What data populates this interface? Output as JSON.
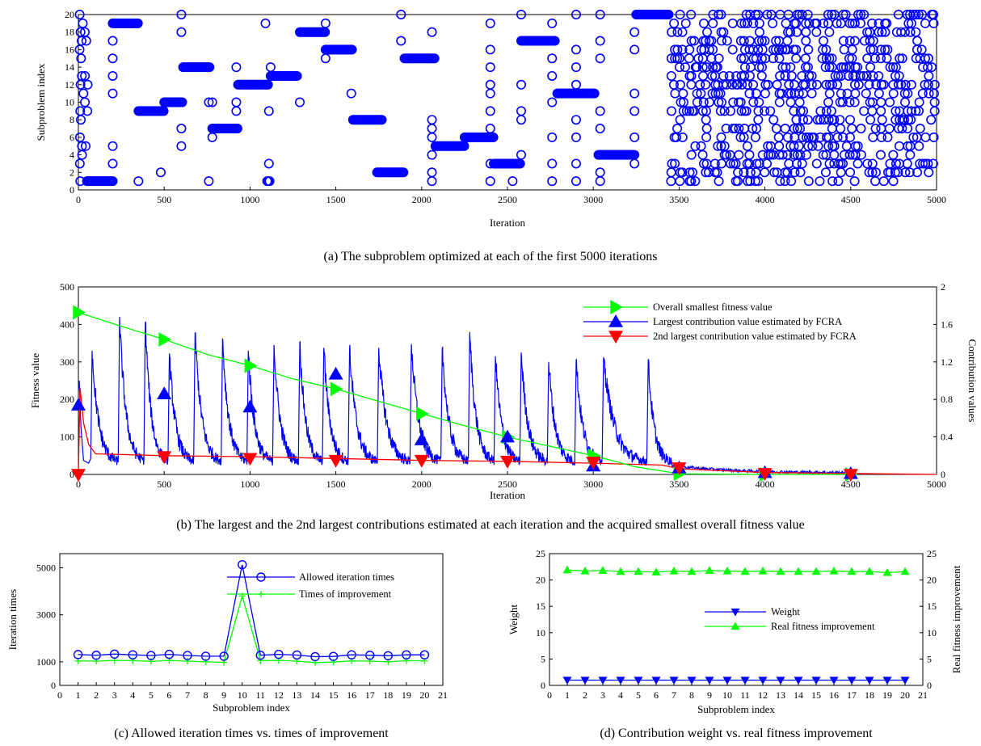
{
  "panels": {
    "a": {
      "caption": "(a)  The subproblem optimized at each of the first 5000 iterations",
      "xlabel": "Iteration",
      "ylabel": "Subproblem index",
      "x_ticks": [
        "0",
        "500",
        "1000",
        "1500",
        "2000",
        "2500",
        "3000",
        "3500",
        "4000",
        "4500",
        "5000"
      ],
      "y_ticks": [
        "0",
        "2",
        "4",
        "6",
        "8",
        "10",
        "12",
        "14",
        "16",
        "18",
        "20"
      ]
    },
    "b": {
      "caption": "(b)  The largest and the 2nd largest contributions estimated at each iteration and the acquired smallest overall fitness value",
      "xlabel": "Iteration",
      "ylabel": "Fitness value",
      "y2label": "Contribution values",
      "x_ticks": [
        "0",
        "500",
        "1000",
        "1500",
        "2000",
        "2500",
        "3000",
        "3500",
        "4000",
        "4500",
        "5000"
      ],
      "y_ticks": [
        "0",
        "100",
        "200",
        "300",
        "400",
        "500"
      ],
      "y2_ticks": [
        "0",
        "0.4",
        "0.8",
        "1.2",
        "1.6",
        "2"
      ],
      "legend": [
        "Overall smallest fitness value",
        "Largest contribution value estimated by FCRA",
        "2nd largest contribution value estimated by FCRA"
      ]
    },
    "c": {
      "caption": "(c)  Allowed iteration times vs. times of improvement",
      "xlabel": "Subproblem index",
      "ylabel": "Iteration times",
      "x_ticks": [
        "0",
        "1",
        "2",
        "3",
        "4",
        "5",
        "6",
        "7",
        "8",
        "9",
        "10",
        "11",
        "12",
        "13",
        "14",
        "15",
        "16",
        "17",
        "18",
        "19",
        "20",
        "21"
      ],
      "y_ticks": [
        "0",
        "1000",
        "3000",
        "5000"
      ],
      "legend": [
        "Allowed iteration times",
        "Times of improvement"
      ]
    },
    "d": {
      "caption": "(d)  Contribution weight vs. real fitness improvement",
      "xlabel": "Subproblem index",
      "ylabel": "Weight",
      "y2label": "Real fitness improvement",
      "x_ticks": [
        "0",
        "1",
        "2",
        "3",
        "4",
        "5",
        "6",
        "7",
        "8",
        "9",
        "10",
        "11",
        "12",
        "13",
        "14",
        "15",
        "16",
        "17",
        "18",
        "19",
        "20",
        "21"
      ],
      "y_ticks": [
        "0",
        "5",
        "10",
        "15",
        "20",
        "25"
      ],
      "y2_ticks": [
        "0",
        "5",
        "10",
        "15",
        "20",
        "25"
      ],
      "y2_tick_labels_overlay": [
        "10"
      ],
      "legend": [
        "Weight",
        "Real fitness improvement"
      ]
    }
  },
  "colors": {
    "blue": "#0000ff",
    "green": "#00ff00",
    "red": "#ff0000"
  },
  "chart_data": [
    {
      "type": "scatter",
      "panel": "a",
      "xlim": [
        0,
        5000
      ],
      "ylim": [
        0,
        20
      ],
      "marker": "open-circle",
      "series": [
        {
          "runs": [
            {
              "x0": 50,
              "x1": 200,
              "y": 1
            },
            {
              "x0": 200,
              "x1": 350,
              "y": 19
            },
            {
              "x0": 350,
              "x1": 500,
              "y": 9
            },
            {
              "x0": 500,
              "x1": 610,
              "y": 10
            },
            {
              "x0": 610,
              "x1": 770,
              "y": 14
            },
            {
              "x0": 780,
              "x1": 930,
              "y": 7
            },
            {
              "x0": 930,
              "x1": 1110,
              "y": 12
            },
            {
              "x0": 1100,
              "x1": 1120,
              "y": 1
            },
            {
              "x0": 1120,
              "x1": 1280,
              "y": 13
            },
            {
              "x0": 1290,
              "x1": 1440,
              "y": 18
            },
            {
              "x0": 1440,
              "x1": 1600,
              "y": 16
            },
            {
              "x0": 1600,
              "x1": 1770,
              "y": 8
            },
            {
              "x0": 1740,
              "x1": 1900,
              "y": 2
            },
            {
              "x0": 1900,
              "x1": 2080,
              "y": 15
            },
            {
              "x0": 2080,
              "x1": 2250,
              "y": 5
            },
            {
              "x0": 2250,
              "x1": 2420,
              "y": 6
            },
            {
              "x0": 2420,
              "x1": 2580,
              "y": 3
            },
            {
              "x0": 2580,
              "x1": 2780,
              "y": 17
            },
            {
              "x0": 2790,
              "x1": 3010,
              "y": 11
            },
            {
              "x0": 3030,
              "x1": 3240,
              "y": 4
            },
            {
              "x0": 3250,
              "x1": 3440,
              "y": 20
            }
          ],
          "scatter_regions": [
            {
              "x0": 0,
              "x1": 60,
              "density": 0.7
            },
            {
              "x0": 3440,
              "x1": 5000,
              "density": 1.0
            }
          ],
          "isolated": [
            [
              200,
              1
            ],
            [
              200,
              3
            ],
            [
              200,
              5
            ],
            [
              200,
              11
            ],
            [
              200,
              13
            ],
            [
              200,
              15
            ],
            [
              200,
              17
            ],
            [
              350,
              1
            ],
            [
              480,
              2
            ],
            [
              600,
              5
            ],
            [
              600,
              7
            ],
            [
              600,
              18
            ],
            [
              600,
              20
            ],
            [
              760,
              1
            ],
            [
              760,
              10
            ],
            [
              780,
              6
            ],
            [
              780,
              10
            ],
            [
              920,
              14
            ],
            [
              920,
              10
            ],
            [
              920,
              9
            ],
            [
              1090,
              19
            ],
            [
              1110,
              3
            ],
            [
              1110,
              9
            ],
            [
              1120,
              14
            ],
            [
              1290,
              10
            ],
            [
              1440,
              15
            ],
            [
              1440,
              19
            ],
            [
              1590,
              11
            ],
            [
              1880,
              17
            ],
            [
              1880,
              20
            ],
            [
              2060,
              1
            ],
            [
              2060,
              2
            ],
            [
              2060,
              4
            ],
            [
              2060,
              6
            ],
            [
              2060,
              7
            ],
            [
              2060,
              8
            ],
            [
              2060,
              18
            ],
            [
              2400,
              1
            ],
            [
              2400,
              3
            ],
            [
              2400,
              7
            ],
            [
              2400,
              9
            ],
            [
              2400,
              11
            ],
            [
              2400,
              12
            ],
            [
              2400,
              14
            ],
            [
              2400,
              16
            ],
            [
              2400,
              19
            ],
            [
              2530,
              1
            ],
            [
              2580,
              4
            ],
            [
              2580,
              8
            ],
            [
              2580,
              9
            ],
            [
              2580,
              12
            ],
            [
              2580,
              20
            ],
            [
              2760,
              1
            ],
            [
              2760,
              3
            ],
            [
              2760,
              6
            ],
            [
              2760,
              10
            ],
            [
              2760,
              13
            ],
            [
              2760,
              15
            ],
            [
              2760,
              19
            ],
            [
              2900,
              1
            ],
            [
              2900,
              3
            ],
            [
              2900,
              6
            ],
            [
              2900,
              8
            ],
            [
              2900,
              12
            ],
            [
              2900,
              14
            ],
            [
              2900,
              16
            ],
            [
              2900,
              20
            ],
            [
              3040,
              1
            ],
            [
              3040,
              2
            ],
            [
              3040,
              7
            ],
            [
              3040,
              9
            ],
            [
              3040,
              15
            ],
            [
              3040,
              17
            ],
            [
              3040,
              20
            ],
            [
              3240,
              3
            ],
            [
              3240,
              6
            ],
            [
              3240,
              9
            ],
            [
              3240,
              11
            ],
            [
              3240,
              16
            ],
            [
              3240,
              18
            ]
          ]
        }
      ]
    },
    {
      "type": "line",
      "panel": "b",
      "xlim": [
        0,
        5000
      ],
      "ylim": [
        0,
        500
      ],
      "y2lim": [
        0,
        2
      ],
      "series": [
        {
          "name": "Overall smallest fitness value",
          "axis": "left",
          "color": "#00ff00",
          "marker": "triangle-right",
          "x": [
            0,
            250,
            500,
            750,
            1000,
            1250,
            1500,
            1750,
            2000,
            2250,
            2500,
            2750,
            3000,
            3250,
            3500,
            4000,
            4500
          ],
          "y": [
            432,
            395,
            360,
            320,
            290,
            255,
            228,
            195,
            162,
            130,
            100,
            75,
            50,
            20,
            2,
            0,
            0
          ],
          "markers_at": [
            0,
            500,
            1000,
            1500,
            2000,
            2500,
            3000,
            3500,
            4000,
            4500
          ]
        },
        {
          "name": "Largest contribution value estimated by FCRA",
          "axis": "right",
          "color": "#0000ff",
          "marker": "triangle-up",
          "peaks_x": [
            80,
            240,
            390,
            530,
            680,
            840,
            990,
            1140,
            1290,
            1430,
            1580,
            1750,
            1940,
            2120,
            2280,
            2430,
            2580,
            2740,
            2900,
            3060,
            3320
          ],
          "peaks_y": [
            1.32,
            1.68,
            1.62,
            1.29,
            1.51,
            1.45,
            1.32,
            1.38,
            1.41,
            1.35,
            1.34,
            1.35,
            1.39,
            1.35,
            1.52,
            1.26,
            1.3,
            1.2,
            1.22,
            1.25,
            1.22
          ],
          "baseline_y": 0.12,
          "after_3450_y": 0.02,
          "markers_at": [
            [
              0,
              0.74
            ],
            [
              500,
              0.86
            ],
            [
              1000,
              0.72
            ],
            [
              1500,
              1.07
            ],
            [
              2000,
              0.37
            ],
            [
              2500,
              0.4
            ],
            [
              3000,
              0.09
            ],
            [
              3500,
              0.07
            ],
            [
              4000,
              0.02
            ],
            [
              4500,
              0.01
            ]
          ]
        },
        {
          "name": "2nd largest contribution value estimated by FCRA",
          "axis": "right",
          "color": "#ff0000",
          "marker": "triangle-down",
          "x": [
            0,
            10,
            30,
            60,
            100,
            500,
            1000,
            1500,
            2000,
            2500,
            3000,
            3400,
            3500,
            4000,
            4500,
            5000
          ],
          "y": [
            0.0,
            0.92,
            0.55,
            0.32,
            0.22,
            0.2,
            0.19,
            0.17,
            0.15,
            0.14,
            0.12,
            0.1,
            0.06,
            0.02,
            0.01,
            0.0
          ],
          "markers_at": [
            [
              0,
              0.0
            ],
            [
              500,
              0.19
            ],
            [
              1000,
              0.17
            ],
            [
              1500,
              0.15
            ],
            [
              2000,
              0.15
            ],
            [
              2500,
              0.14
            ],
            [
              3000,
              0.13
            ],
            [
              3500,
              0.07
            ],
            [
              4000,
              0.01
            ],
            [
              4500,
              0.0
            ]
          ]
        }
      ]
    },
    {
      "type": "line",
      "panel": "c",
      "xlim": [
        0,
        21
      ],
      "ylim": [
        0,
        5600
      ],
      "categories": [
        1,
        2,
        3,
        4,
        5,
        6,
        7,
        8,
        9,
        10,
        11,
        12,
        13,
        14,
        15,
        16,
        17,
        18,
        19,
        20
      ],
      "series": [
        {
          "name": "Allowed iteration times",
          "color": "#0000ff",
          "marker": "circle",
          "values": [
            1310,
            1280,
            1330,
            1300,
            1270,
            1320,
            1270,
            1240,
            1240,
            5130,
            1280,
            1320,
            1290,
            1220,
            1230,
            1300,
            1280,
            1260,
            1300,
            1300
          ]
        },
        {
          "name": "Times of improvement",
          "color": "#00ff00",
          "marker": "plus",
          "values": [
            1040,
            1030,
            1060,
            1050,
            1020,
            1060,
            1030,
            1000,
            980,
            3800,
            1050,
            1060,
            1030,
            970,
            990,
            1040,
            1030,
            1000,
            1050,
            1040
          ]
        }
      ]
    },
    {
      "type": "line",
      "panel": "d",
      "xlim": [
        0,
        21
      ],
      "ylim": [
        0,
        25
      ],
      "y2lim": [
        0,
        25
      ],
      "categories": [
        1,
        2,
        3,
        4,
        5,
        6,
        7,
        8,
        9,
        10,
        11,
        12,
        13,
        14,
        15,
        16,
        17,
        18,
        19,
        20
      ],
      "series": [
        {
          "name": "Weight",
          "axis": "left",
          "color": "#0000ff",
          "marker": "triangle-down",
          "values": [
            1,
            1,
            1,
            1,
            1,
            1,
            1,
            1,
            1,
            1,
            1,
            1,
            1,
            1,
            1,
            1,
            1,
            1,
            1,
            1
          ]
        },
        {
          "name": "Real fitness improvement",
          "axis": "right",
          "color": "#00ff00",
          "marker": "triangle-up",
          "values": [
            21.9,
            21.7,
            21.8,
            21.6,
            21.6,
            21.5,
            21.7,
            21.6,
            21.8,
            21.7,
            21.6,
            21.7,
            21.6,
            21.6,
            21.6,
            21.7,
            21.6,
            21.6,
            21.4,
            21.6
          ]
        }
      ]
    }
  ]
}
